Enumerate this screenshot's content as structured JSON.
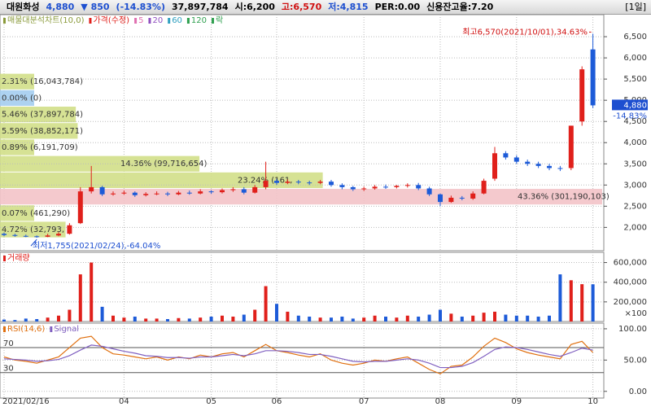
{
  "header": {
    "items": [
      {
        "text": "대원화성",
        "color": "#000000"
      },
      {
        "text": "4,880",
        "color": "#1d4fd0"
      },
      {
        "text": "▼ 850",
        "color": "#1d4fd0"
      },
      {
        "text": "(-14.83%)",
        "color": "#1d4fd0"
      },
      {
        "text": "37,897,784",
        "color": "#000000"
      },
      {
        "text": "시:6,200",
        "color": "#000000"
      },
      {
        "text": "고:6,570",
        "color": "#d01010"
      },
      {
        "text": "저:4,815",
        "color": "#1d4fd0"
      },
      {
        "text": "PER:0.00",
        "color": "#000000"
      },
      {
        "text": "신용잔고율:7.20",
        "color": "#000000"
      }
    ],
    "period": "[1일]"
  },
  "chart_data": [
    {
      "type": "candlestick",
      "legend": [
        {
          "label": "매물대분석차트(10,0)",
          "color": "#8a9a3a"
        },
        {
          "label": "가격(수정)",
          "color": "#e0201b"
        },
        {
          "label": "5",
          "color": "#e070b0"
        },
        {
          "label": "20",
          "color": "#9050c0"
        },
        {
          "label": "60",
          "color": "#30a0c0"
        },
        {
          "label": "120",
          "color": "#30a050"
        },
        {
          "label": "락",
          "color": "#30a050"
        }
      ],
      "categories": [
        "2021/02/16",
        null,
        null,
        null,
        null,
        null,
        null,
        null,
        null,
        null,
        null,
        "04",
        null,
        null,
        null,
        null,
        null,
        null,
        null,
        "05",
        null,
        null,
        null,
        null,
        null,
        "06",
        null,
        null,
        null,
        null,
        null,
        null,
        null,
        "07",
        null,
        null,
        null,
        null,
        null,
        null,
        "08",
        null,
        null,
        null,
        null,
        null,
        null,
        "09",
        null,
        null,
        null,
        null,
        null,
        null,
        "10"
      ],
      "open": [
        1850,
        1820,
        1800,
        1790,
        1780,
        1810,
        1850,
        2100,
        2850,
        2950,
        2780,
        2800,
        2820,
        2760,
        2790,
        2800,
        2780,
        2820,
        2800,
        2850,
        2830,
        2880,
        2900,
        2820,
        2950,
        3100,
        3050,
        3080,
        3060,
        3050,
        3080,
        3000,
        2950,
        2900,
        2920,
        2960,
        2950,
        2980,
        3000,
        2920,
        2780,
        2600,
        2700,
        2680,
        2800,
        3150,
        3750,
        3650,
        3550,
        3500,
        3450,
        3400,
        3400,
        4500,
        6200
      ],
      "high": [
        1880,
        1850,
        1830,
        1810,
        1850,
        1890,
        2100,
        2950,
        3450,
        2980,
        2850,
        2870,
        2850,
        2830,
        2850,
        2840,
        2860,
        2870,
        2900,
        2880,
        2920,
        2950,
        2950,
        3000,
        3550,
        3150,
        3130,
        3120,
        3100,
        3120,
        3120,
        3040,
        2980,
        2960,
        3000,
        3010,
        3000,
        3040,
        3050,
        2960,
        2800,
        2750,
        2740,
        2850,
        3150,
        3900,
        3800,
        3700,
        3600,
        3550,
        3500,
        3450,
        4400,
        5800,
        6570
      ],
      "low": [
        1790,
        1780,
        1770,
        1755,
        1770,
        1790,
        1830,
        2080,
        2800,
        2740,
        2750,
        2770,
        2720,
        2730,
        2760,
        2740,
        2760,
        2770,
        2780,
        2790,
        2800,
        2840,
        2780,
        2800,
        2900,
        3000,
        3020,
        3020,
        3000,
        3020,
        2960,
        2900,
        2860,
        2860,
        2890,
        2910,
        2920,
        2940,
        2880,
        2740,
        2500,
        2580,
        2640,
        2650,
        2780,
        3100,
        3600,
        3500,
        3450,
        3400,
        3350,
        3330,
        3350,
        4400,
        4815
      ],
      "close": [
        1820,
        1800,
        1790,
        1780,
        1810,
        1850,
        2050,
        2850,
        2950,
        2780,
        2800,
        2820,
        2760,
        2790,
        2800,
        2780,
        2820,
        2800,
        2850,
        2830,
        2880,
        2900,
        2820,
        2950,
        3100,
        3050,
        3080,
        3060,
        3050,
        3080,
        3000,
        2950,
        2900,
        2920,
        2960,
        2950,
        2980,
        3000,
        2920,
        2780,
        2600,
        2700,
        2680,
        2800,
        3100,
        3750,
        3650,
        3550,
        3500,
        3450,
        3400,
        3380,
        4400,
        5730,
        4880
      ],
      "up_color": "#e0201b",
      "down_color": "#1d5bd8",
      "profile_bins": [
        1755,
        2143,
        2531,
        2919,
        3307,
        3695,
        4083,
        4471,
        4859,
        5247,
        5635
      ],
      "profile_values": [
        4.72,
        0.07,
        43.36,
        23.24,
        14.36,
        0.89,
        5.59,
        5.46,
        0.0,
        2.31
      ],
      "profile_labels": [
        "4.72% (32,793,",
        "0.07% (461,290)",
        "43.36% (301,190,103)",
        "23.24% (161,",
        "14.36% (99,716,654)",
        "0.89% (6,191,709)",
        "5.59% (38,852,171)",
        "5.46% (37,897,784)",
        "0.00% (0)",
        "2.31% (16,043,784)"
      ],
      "profile_color": "#d2df88",
      "profile_max_color": "#f3c3c8",
      "profile_current_color": "#a4cdef",
      "annotations": {
        "high": "최고6,570(2021/10/01),34.63%",
        "low": "최저1,755(2021/02/24),-64.04%"
      },
      "current": {
        "value": 4880,
        "label": "4,880",
        "change": "-14.83%"
      },
      "ylim": [
        1450,
        7020
      ],
      "yticks": [
        {
          "value": 2000,
          "label": "2,000"
        },
        {
          "value": 2500,
          "label": "2,500"
        },
        {
          "value": 3000,
          "label": "3,000"
        },
        {
          "value": 3500,
          "label": "3,500"
        },
        {
          "value": 4000,
          "label": "4,000"
        },
        {
          "value": 4500,
          "label": "4,500"
        },
        {
          "value": 5000,
          "label": "5,000"
        },
        {
          "value": 5500,
          "label": "5,500"
        },
        {
          "value": 6000,
          "label": "6,000"
        },
        {
          "value": 6500,
          "label": "6,500"
        }
      ],
      "grid": true
    },
    {
      "type": "bar",
      "legend": [
        {
          "label": "거래량",
          "color": "#e0201b"
        }
      ],
      "values": [
        20000,
        15000,
        30000,
        25000,
        40000,
        60000,
        120000,
        480000,
        600000,
        150000,
        60000,
        40000,
        50000,
        30000,
        30000,
        25000,
        35000,
        30000,
        40000,
        50000,
        60000,
        50000,
        70000,
        120000,
        360000,
        180000,
        100000,
        60000,
        50000,
        40000,
        40000,
        50000,
        30000,
        40000,
        60000,
        50000,
        40000,
        60000,
        50000,
        70000,
        120000,
        80000,
        50000,
        60000,
        90000,
        100000,
        70000,
        60000,
        60000,
        50000,
        60000,
        480000,
        420000,
        380000,
        378978
      ],
      "unit": "×100",
      "ylim": [
        0,
        704000
      ],
      "yticks": [
        {
          "value": 200000,
          "label": "200,000"
        },
        {
          "value": 400000,
          "label": "400,000"
        },
        {
          "value": 600000,
          "label": "600,000"
        }
      ],
      "grid": true
    },
    {
      "type": "line",
      "series": [
        {
          "name": "RSI(14,6)",
          "color": "#e07010",
          "values": [
            55,
            50,
            48,
            45,
            50,
            55,
            70,
            85,
            88,
            70,
            60,
            58,
            55,
            52,
            55,
            50,
            55,
            52,
            58,
            55,
            60,
            62,
            55,
            65,
            75,
            65,
            62,
            58,
            55,
            60,
            50,
            45,
            42,
            45,
            50,
            48,
            52,
            55,
            45,
            35,
            28,
            40,
            42,
            55,
            72,
            85,
            78,
            68,
            62,
            58,
            55,
            52,
            75,
            80,
            62
          ]
        },
        {
          "name": "Signal",
          "color": "#8060c0",
          "values": [
            52,
            51,
            50,
            48,
            49,
            51,
            57,
            66,
            74,
            72,
            68,
            64,
            61,
            57,
            56,
            54,
            54,
            53,
            55,
            55,
            57,
            59,
            57,
            60,
            65,
            65,
            64,
            62,
            59,
            59,
            56,
            52,
            48,
            47,
            48,
            48,
            50,
            52,
            50,
            45,
            38,
            38,
            40,
            46,
            56,
            67,
            71,
            70,
            67,
            63,
            59,
            56,
            62,
            69,
            66
          ]
        }
      ],
      "ref_lines": [
        70,
        30
      ],
      "ylim": [
        -10.7,
        109
      ],
      "yticks": [
        {
          "value": 0,
          "label": "0.00"
        },
        {
          "value": 50,
          "label": "50.00"
        },
        {
          "value": 100,
          "label": "100.00"
        }
      ],
      "grid": true
    }
  ]
}
